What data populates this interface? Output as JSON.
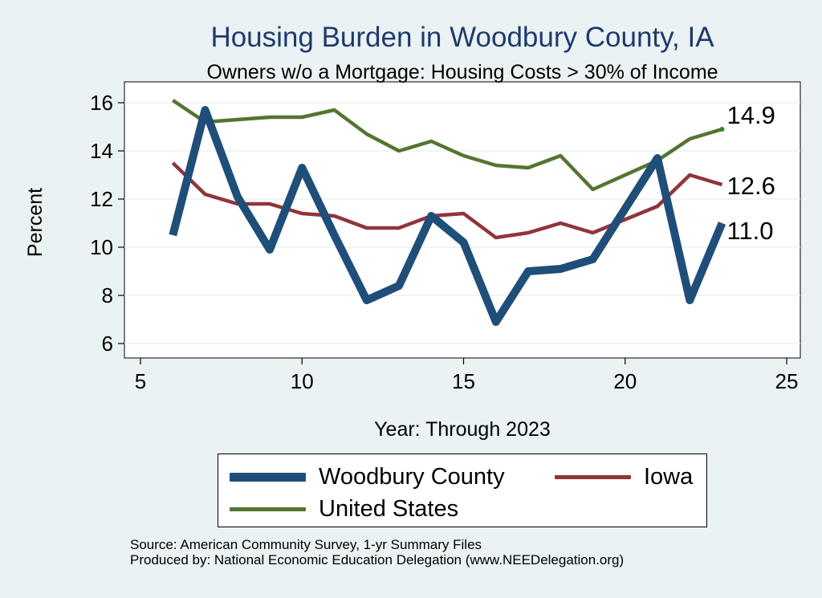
{
  "chart_data": {
    "type": "line",
    "title": "Housing Burden in Woodbury County, IA",
    "subtitle": "Owners w/o a Mortgage: Housing Costs > 30% of Income",
    "xlabel": "Year: Through 2023",
    "ylabel": "Percent",
    "xlim": [
      5,
      25
    ],
    "ylim": [
      6,
      16
    ],
    "x_ticks": [
      5,
      10,
      15,
      20,
      25
    ],
    "y_ticks": [
      6,
      8,
      10,
      12,
      14,
      16
    ],
    "grid": "horizontal",
    "legend_position": "bottom",
    "series": [
      {
        "name": "Woodbury County",
        "color": "#1f4e79",
        "x": [
          6,
          7,
          8,
          9,
          10,
          11,
          12,
          13,
          14,
          15,
          16,
          17,
          18,
          19,
          21,
          22,
          23
        ],
        "y": [
          10.5,
          15.7,
          12.1,
          9.9,
          13.3,
          10.5,
          7.8,
          8.4,
          11.3,
          10.2,
          6.9,
          9.0,
          9.1,
          9.5,
          13.7,
          7.8,
          11.0
        ],
        "end_label": "11.0"
      },
      {
        "name": "Iowa",
        "color": "#90353b",
        "x": [
          6,
          7,
          8,
          9,
          10,
          11,
          12,
          13,
          14,
          15,
          16,
          17,
          18,
          19,
          21,
          22,
          23
        ],
        "y": [
          13.5,
          12.2,
          11.8,
          11.8,
          11.4,
          11.3,
          10.8,
          10.8,
          11.3,
          11.4,
          10.4,
          10.6,
          11.0,
          10.6,
          11.7,
          13.0,
          12.6
        ],
        "end_label": "12.6"
      },
      {
        "name": "United States",
        "color": "#55752f",
        "x": [
          6,
          7,
          8,
          9,
          10,
          11,
          12,
          13,
          14,
          15,
          16,
          17,
          18,
          19,
          21,
          22,
          23
        ],
        "y": [
          16.1,
          15.2,
          15.3,
          15.4,
          15.4,
          15.7,
          14.7,
          14.0,
          14.4,
          13.8,
          13.4,
          13.3,
          13.8,
          12.4,
          13.6,
          14.5,
          14.9
        ],
        "end_label": "14.9"
      }
    ],
    "legend": [
      {
        "name": "Woodbury County",
        "color": "#1f4e79"
      },
      {
        "name": "Iowa",
        "color": "#90353b"
      },
      {
        "name": "United States",
        "color": "#55752f"
      }
    ],
    "source_notes": [
      "Source: American Community Survey, 1-yr Summary Files",
      "Produced by: National Economic Education Delegation (www.NEEDelegation.org)"
    ]
  }
}
